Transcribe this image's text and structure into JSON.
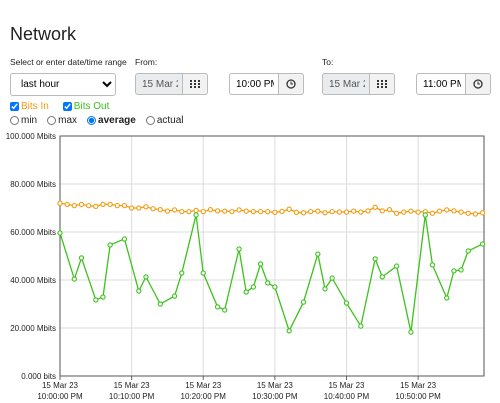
{
  "title": "Network",
  "range_label": "Select or enter date/time range",
  "range_select": "last hour",
  "from": {
    "label": "From:",
    "date": "15 Mar 2",
    "time": "10:00 PM"
  },
  "to": {
    "label": "To:",
    "date": "15 Mar 2",
    "time": "11:00 PM"
  },
  "modes": {
    "options": [
      "min",
      "max",
      "average",
      "actual"
    ],
    "selected": "average"
  },
  "chart_data": {
    "type": "line",
    "grid": true,
    "ylim": [
      0,
      100
    ],
    "yticks": [
      {
        "value": 0,
        "label": "0.000 bits"
      },
      {
        "value": 20,
        "label": "20.000 Mbits"
      },
      {
        "value": 40,
        "label": "40.000 Mbits"
      },
      {
        "value": 60,
        "label": "60.000 Mbits"
      },
      {
        "value": 80,
        "label": "80.000 Mbits"
      },
      {
        "value": 100,
        "label": "100.000 Mbits"
      }
    ],
    "xlim": [
      0,
      59.2
    ],
    "xticks": [
      {
        "value": 0,
        "label": [
          "15 Mar 23",
          "10:00:00 PM"
        ]
      },
      {
        "value": 10,
        "label": [
          "15 Mar 23",
          "10:10:00 PM"
        ]
      },
      {
        "value": 20,
        "label": [
          "15 Mar 23",
          "10:20:00 PM"
        ]
      },
      {
        "value": 30,
        "label": [
          "15 Mar 23",
          "10:30:00 PM"
        ]
      },
      {
        "value": 40,
        "label": [
          "15 Mar 23",
          "10:40:00 PM"
        ]
      },
      {
        "value": 50,
        "label": [
          "15 Mar 23",
          "10:50:00 PM"
        ]
      }
    ],
    "series": [
      {
        "name": "Bits In",
        "color": "#f39c12",
        "x": [
          0,
          1,
          2,
          3,
          4,
          5,
          6,
          7,
          8,
          9,
          10,
          11,
          12,
          13,
          14,
          15,
          16,
          17,
          18,
          19,
          20,
          21,
          22,
          23,
          24,
          25,
          26,
          27,
          28,
          29,
          30,
          31,
          32,
          33,
          34,
          35,
          36,
          37,
          38,
          39,
          40,
          41,
          42,
          43,
          44,
          45,
          46,
          47,
          48,
          49,
          50,
          51,
          52,
          53,
          54,
          55,
          56,
          57,
          58,
          59
        ],
        "values": [
          72,
          71.5,
          71,
          71.5,
          71,
          70.7,
          71.5,
          71.5,
          71,
          71,
          70,
          70,
          70.5,
          69.7,
          69.3,
          68.7,
          69.2,
          68.5,
          68.5,
          69,
          68.5,
          69.3,
          68.8,
          68.7,
          68.5,
          69.2,
          68.7,
          68.5,
          68.5,
          68.5,
          68.2,
          68.6,
          69.5,
          68.2,
          68,
          68.5,
          68.7,
          68,
          68.5,
          68.3,
          68.3,
          68.7,
          68.3,
          68.8,
          70.3,
          68.8,
          69.3,
          67.8,
          68.3,
          68.7,
          68.3,
          68.5,
          67.8,
          68.7,
          69.2,
          68.8,
          68.3,
          67.8,
          67.5,
          68
        ]
      },
      {
        "name": "Bits Out",
        "color": "#3cc21c",
        "x": [
          0,
          2,
          3,
          5,
          6,
          7,
          9,
          11,
          12,
          14,
          16,
          17,
          19,
          20,
          22,
          23,
          25,
          26,
          27,
          28,
          29,
          30,
          32,
          34,
          36,
          37,
          38,
          40,
          42,
          44,
          45,
          47,
          49,
          51,
          52,
          54,
          55,
          56,
          57,
          59
        ],
        "values": [
          59.6,
          40.4,
          49.2,
          31.7,
          32.9,
          54.6,
          57.1,
          35.4,
          41.3,
          30,
          33.3,
          42.9,
          67.1,
          42.9,
          28.8,
          27.5,
          52.9,
          35,
          37.1,
          46.7,
          38.8,
          37.1,
          18.8,
          30.8,
          50.8,
          36.3,
          40.8,
          30.4,
          20.8,
          48.8,
          41.3,
          45.8,
          18.3,
          67.1,
          46.3,
          32.5,
          43.8,
          44.2,
          52.1,
          55
        ]
      }
    ]
  }
}
